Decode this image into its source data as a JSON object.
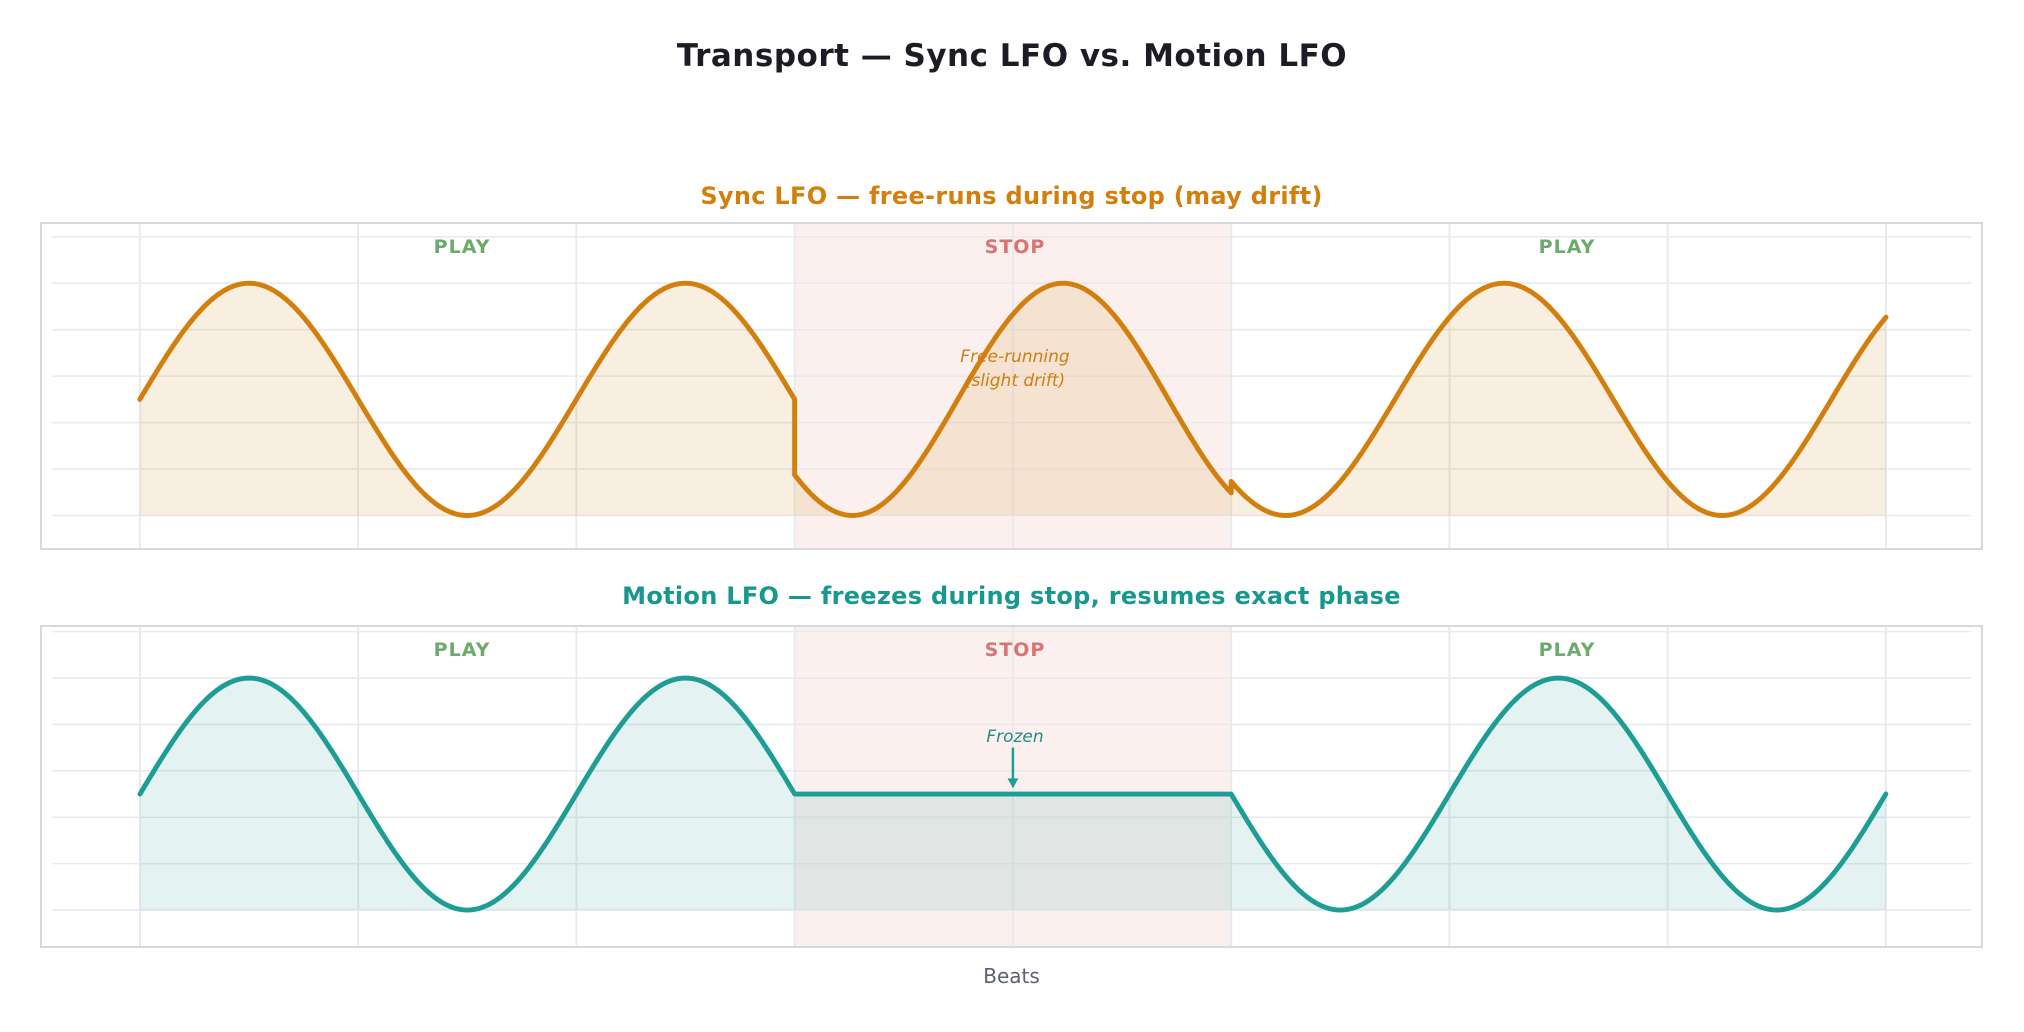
{
  "page": {
    "title": "Transport — Sync LFO vs. Motion LFO",
    "xlabel": "Beats"
  },
  "colors": {
    "background": "#ffffff",
    "grid": "#e8eaee",
    "plot_border": "#d6dade",
    "play_label": "#6cab6c",
    "stop_label": "#d97474",
    "stop_band": "rgba(225,120,100,0.11)",
    "main_title": "#1c1c24",
    "axis_label": "#5a6270"
  },
  "chart_data": [
    {
      "type": "line",
      "title": "Sync LFO — free-runs during stop (may drift)",
      "series_name": "Sync LFO",
      "line_color": "#d27f0d",
      "fill_color": "rgba(210,128,14,0.13)",
      "xlim": [
        -0.806,
        16.78
      ],
      "ylim": [
        -1.28,
        1.51
      ],
      "x_gridlines_beats": [
        0,
        2,
        4,
        6,
        8,
        10,
        12,
        14,
        16
      ],
      "y_gridlines_values": [
        1.4,
        1.0,
        0.6,
        0.2,
        -0.2,
        -0.6,
        -1.0
      ],
      "baseline_value": -1,
      "grid": true,
      "legend": "none",
      "regions": [
        {
          "label": "PLAY",
          "from_beat": 0,
          "to_beat": 6,
          "kind": "play"
        },
        {
          "label": "STOP",
          "from_beat": 6,
          "to_beat": 10,
          "kind": "stop"
        },
        {
          "label": "PLAY",
          "from_beat": 10,
          "to_beat": 16,
          "kind": "play"
        }
      ],
      "segments": [
        {
          "from": 0,
          "to": 6,
          "trig": "sin",
          "t0": 0,
          "period": 4,
          "scale": 1
        },
        {
          "from": 6,
          "to": 10,
          "trig": "cos",
          "t0": 6.53,
          "period": 3.86,
          "scale": -1
        },
        {
          "from": 10,
          "to": 16,
          "trig": "cos",
          "t0": 10.5,
          "period": 4,
          "scale": -1
        }
      ],
      "annotation": {
        "lines": [
          "Free-running",
          "(slight drift)"
        ],
        "beat": 8,
        "value": 0.38
      }
    },
    {
      "type": "line",
      "title": "Motion LFO — freezes during stop, resumes exact phase",
      "series_name": "Motion LFO",
      "line_color": "#1d9d95",
      "fill_color": "rgba(30,155,147,0.12)",
      "xlim": [
        -0.806,
        16.78
      ],
      "ylim": [
        -1.31,
        1.44
      ],
      "x_gridlines_beats": [
        0,
        2,
        4,
        6,
        8,
        10,
        12,
        14,
        16
      ],
      "y_gridlines_values": [
        1.4,
        1.0,
        0.6,
        0.2,
        -0.2,
        -0.6,
        -1.0
      ],
      "baseline_value": -1,
      "grid": true,
      "legend": "none",
      "regions": [
        {
          "label": "PLAY",
          "from_beat": 0,
          "to_beat": 6,
          "kind": "play"
        },
        {
          "label": "STOP",
          "from_beat": 6,
          "to_beat": 10,
          "kind": "stop"
        },
        {
          "label": "PLAY",
          "from_beat": 10,
          "to_beat": 16,
          "kind": "play"
        }
      ],
      "segments": [
        {
          "from": 0,
          "to": 6,
          "trig": "sin",
          "t0": 0,
          "period": 4,
          "scale": 1
        },
        {
          "from": 6,
          "to": 10,
          "const": 0
        },
        {
          "from": 10,
          "to": 16,
          "trig": "sin",
          "t0": 4,
          "period": 4,
          "scale": 1
        }
      ],
      "annotation": {
        "lines": [
          "Frozen"
        ],
        "beat": 8,
        "value": 0.52,
        "arrow": {
          "beat": 8,
          "from_value": 0.4,
          "to_value": 0.05
        }
      }
    }
  ]
}
